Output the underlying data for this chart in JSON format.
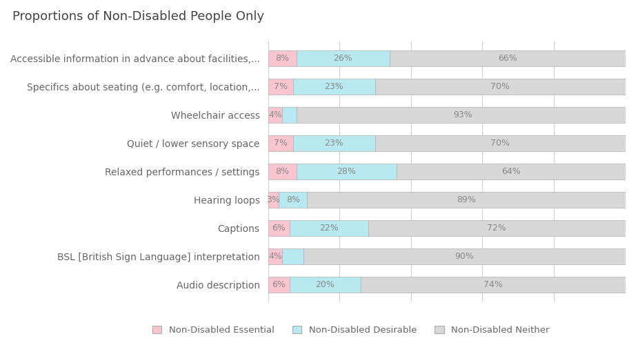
{
  "title": "Proportions of Non-Disabled People Only",
  "categories": [
    "Accessible information in advance about facilities,...",
    "Specifics about seating (e.g. comfort, location,...",
    "Wheelchair access",
    "Quiet / lower sensory space",
    "Relaxed performances / settings",
    "Hearing loops",
    "Captions",
    "BSL [British Sign Language] interpretation",
    "Audio description"
  ],
  "essential": [
    8,
    7,
    4,
    7,
    8,
    3,
    6,
    4,
    6
  ],
  "desirable": [
    26,
    23,
    4,
    23,
    28,
    8,
    22,
    6,
    20
  ],
  "neither": [
    66,
    70,
    93,
    70,
    64,
    89,
    72,
    90,
    74
  ],
  "color_essential": "#f9c6d0",
  "color_desirable": "#b8e8f0",
  "color_neither": "#d8d8d8",
  "border_color": "#b0b0b0",
  "legend_labels": [
    "Non-Disabled Essential",
    "Non-Disabled Desirable",
    "Non-Disabled Neither"
  ],
  "title_fontsize": 13,
  "label_fontsize": 10,
  "bar_label_fontsize": 9,
  "background_color": "#ffffff",
  "bar_height": 0.55,
  "text_color": "#888888",
  "label_color": "#666666"
}
